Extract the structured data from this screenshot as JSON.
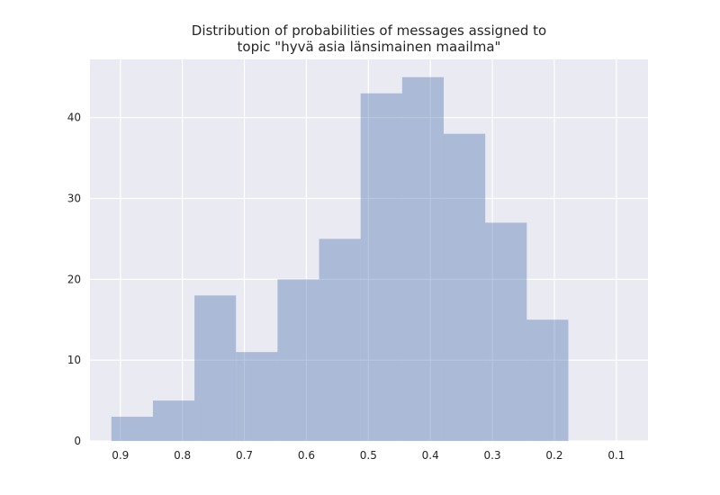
{
  "chart_data": {
    "type": "bar",
    "subtype": "histogram",
    "title_lines": [
      "Distribution of probabilities of messages assigned to",
      "topic \"hyvä asia länsimainen maailma\""
    ],
    "xlabel": "",
    "ylabel": "",
    "x_inverted": true,
    "xlim": [
      0.949,
      0.049
    ],
    "ylim": [
      0,
      47.2
    ],
    "xticks": [
      "0.9",
      "0.8",
      "0.7",
      "0.6",
      "0.5",
      "0.4",
      "0.3",
      "0.2",
      "0.1"
    ],
    "xtick_values": [
      0.9,
      0.8,
      0.7,
      0.6,
      0.5,
      0.4,
      0.3,
      0.2,
      0.1
    ],
    "yticks": [
      "0",
      "10",
      "20",
      "30",
      "40"
    ],
    "ytick_values": [
      0,
      10,
      20,
      30,
      40
    ],
    "bin_edges": [
      0.9145,
      0.8475,
      0.7805,
      0.7135,
      0.6465,
      0.5795,
      0.5125,
      0.4455,
      0.3785,
      0.3115,
      0.2445,
      0.1775
    ],
    "values": [
      3,
      5,
      18,
      11,
      20,
      25,
      43,
      45,
      38,
      27,
      15
    ],
    "grid": true,
    "colors": {
      "bar": "#a9b9d7",
      "background": "#eaeaf2",
      "grid": "#ffffff"
    }
  }
}
